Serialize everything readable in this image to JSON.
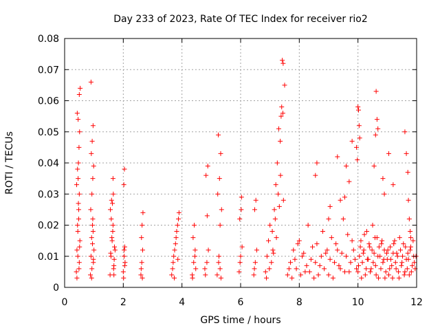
{
  "chart_data": {
    "type": "scatter",
    "title": "Day 233 of 2023, Rate Of TEC Index for receiver rio2",
    "xlabel": "GPS time / hours",
    "ylabel": "ROTI / TECUs",
    "xlim": [
      0,
      12
    ],
    "ylim": [
      0,
      0.08
    ],
    "xticks": [
      0,
      2,
      4,
      6,
      8,
      10,
      12
    ],
    "xtick_labels": [
      "0",
      "2",
      "4",
      "6",
      "8",
      "10",
      "12"
    ],
    "yticks": [
      0,
      0.01,
      0.02,
      0.03,
      0.04,
      0.05,
      0.06,
      0.07,
      0.08
    ],
    "ytick_labels": [
      "0",
      "0.01",
      "0.02",
      "0.03",
      "0.04",
      "0.05",
      "0.06",
      "0.07",
      "0.08"
    ],
    "grid": true,
    "marker": "+",
    "color": "#ff0000",
    "series": [
      {
        "name": "ROTI",
        "x": [
          0.4,
          0.42,
          0.45,
          0.48,
          0.5,
          0.52,
          0.41,
          0.44,
          0.47,
          0.49,
          0.51,
          0.43,
          0.46,
          0.5,
          0.53,
          0.42,
          0.45,
          0.48,
          0.5,
          0.44,
          0.47,
          0.49,
          0.51,
          0.46,
          0.88,
          0.9,
          0.92,
          0.95,
          0.98,
          1.0,
          0.89,
          0.93,
          0.96,
          0.99,
          0.91,
          0.94,
          0.97,
          0.9,
          0.93,
          0.95,
          0.97,
          0.92,
          0.96,
          0.98,
          1.55,
          1.58,
          1.62,
          1.65,
          1.68,
          1.72,
          1.56,
          1.6,
          1.64,
          1.67,
          1.7,
          1.59,
          1.63,
          1.66,
          1.69,
          1.61,
          1.65,
          1.68,
          1.57,
          2.0,
          2.03,
          2.05,
          2.02,
          2.04,
          2.06,
          2.01,
          2.03,
          2.05,
          2.6,
          2.63,
          2.66,
          2.62,
          2.64,
          2.67,
          2.61,
          2.65,
          3.65,
          3.7,
          3.75,
          3.8,
          3.85,
          3.9,
          3.68,
          3.72,
          3.78,
          3.82,
          3.88,
          3.74,
          3.86,
          4.35,
          4.4,
          4.45,
          4.38,
          4.42,
          4.47,
          4.36,
          4.44,
          4.8,
          4.85,
          4.9,
          4.82,
          4.88,
          4.78,
          4.86,
          5.2,
          5.25,
          5.3,
          5.35,
          5.22,
          5.28,
          5.32,
          5.24,
          5.3,
          5.33,
          5.26,
          5.95,
          6.0,
          6.05,
          5.97,
          6.02,
          6.03,
          5.98,
          6.45,
          6.5,
          6.55,
          6.48,
          6.52,
          6.47,
          6.85,
          6.9,
          6.95,
          7.0,
          7.05,
          7.1,
          7.15,
          7.2,
          7.25,
          7.3,
          7.35,
          7.4,
          7.45,
          7.5,
          6.88,
          6.98,
          7.08,
          7.18,
          7.28,
          7.38,
          7.42,
          7.44,
          7.46,
          7.36,
          7.32,
          7.22,
          7.12,
          7.6,
          7.7,
          7.8,
          7.9,
          8.0,
          8.1,
          8.2,
          8.3,
          8.4,
          8.5,
          8.6,
          8.7,
          8.8,
          8.9,
          9.0,
          9.1,
          9.2,
          9.3,
          9.4,
          9.5,
          9.6,
          9.7,
          9.8,
          9.9,
          7.65,
          7.75,
          7.85,
          7.95,
          8.05,
          8.15,
          8.25,
          8.35,
          8.45,
          8.55,
          8.65,
          8.75,
          8.85,
          8.95,
          9.05,
          9.15,
          9.25,
          9.35,
          9.45,
          9.55,
          9.65,
          9.75,
          9.85,
          9.95,
          8.55,
          8.6,
          9.0,
          9.05,
          9.3,
          9.4,
          9.55,
          9.6,
          9.7,
          9.8,
          10.0,
          10.05,
          10.1,
          10.15,
          10.2,
          10.25,
          10.3,
          10.35,
          10.4,
          10.45,
          10.5,
          10.55,
          10.6,
          10.65,
          10.7,
          10.75,
          10.8,
          10.85,
          10.9,
          10.95,
          11.0,
          11.05,
          11.1,
          11.15,
          11.2,
          11.25,
          11.3,
          11.35,
          11.4,
          11.45,
          11.5,
          11.55,
          11.6,
          11.65,
          11.7,
          11.75,
          11.8,
          11.85,
          11.9,
          11.95,
          10.02,
          10.08,
          10.12,
          10.18,
          10.22,
          10.28,
          10.32,
          10.38,
          10.42,
          10.48,
          10.52,
          10.58,
          10.62,
          10.68,
          10.72,
          10.78,
          10.82,
          10.88,
          10.92,
          10.98,
          11.02,
          11.08,
          11.12,
          11.18,
          11.22,
          11.28,
          11.32,
          11.38,
          11.42,
          11.48,
          11.52,
          11.58,
          11.62,
          11.68,
          11.72,
          11.78,
          11.82,
          11.88,
          11.92,
          11.98,
          9.95,
          9.98,
          10.0,
          10.02,
          10.04,
          10.06,
          10.55,
          10.6,
          10.62,
          10.65,
          10.68,
          10.85,
          10.9,
          11.05,
          11.2,
          11.6,
          11.65,
          11.7,
          11.72,
          11.75,
          11.78,
          11.8
        ],
        "y": [
          0.005,
          0.012,
          0.018,
          0.022,
          0.008,
          0.015,
          0.033,
          0.038,
          0.04,
          0.045,
          0.05,
          0.056,
          0.054,
          0.062,
          0.064,
          0.003,
          0.01,
          0.025,
          0.03,
          0.02,
          0.027,
          0.006,
          0.013,
          0.035,
          0.004,
          0.01,
          0.016,
          0.02,
          0.008,
          0.012,
          0.025,
          0.03,
          0.035,
          0.039,
          0.043,
          0.047,
          0.052,
          0.066,
          0.006,
          0.014,
          0.018,
          0.003,
          0.022,
          0.009,
          0.004,
          0.01,
          0.015,
          0.02,
          0.007,
          0.012,
          0.025,
          0.028,
          0.018,
          0.006,
          0.013,
          0.022,
          0.027,
          0.03,
          0.009,
          0.016,
          0.035,
          0.004,
          0.011,
          0.005,
          0.01,
          0.013,
          0.033,
          0.038,
          0.008,
          0.003,
          0.012,
          0.007,
          0.004,
          0.008,
          0.012,
          0.016,
          0.02,
          0.024,
          0.006,
          0.003,
          0.004,
          0.008,
          0.012,
          0.016,
          0.02,
          0.024,
          0.006,
          0.01,
          0.014,
          0.018,
          0.022,
          0.003,
          0.009,
          0.004,
          0.008,
          0.012,
          0.016,
          0.02,
          0.006,
          0.003,
          0.01,
          0.004,
          0.008,
          0.012,
          0.036,
          0.039,
          0.006,
          0.023,
          0.004,
          0.008,
          0.02,
          0.025,
          0.03,
          0.035,
          0.043,
          0.049,
          0.006,
          0.003,
          0.01,
          0.005,
          0.01,
          0.013,
          0.022,
          0.025,
          0.029,
          0.008,
          0.004,
          0.008,
          0.012,
          0.025,
          0.028,
          0.006,
          0.005,
          0.01,
          0.015,
          0.02,
          0.008,
          0.012,
          0.025,
          0.033,
          0.04,
          0.051,
          0.047,
          0.058,
          0.072,
          0.065,
          0.003,
          0.006,
          0.018,
          0.022,
          0.03,
          0.055,
          0.073,
          0.056,
          0.028,
          0.036,
          0.026,
          0.016,
          0.011,
          0.004,
          0.008,
          0.012,
          0.006,
          0.015,
          0.01,
          0.005,
          0.02,
          0.009,
          0.003,
          0.014,
          0.007,
          0.018,
          0.011,
          0.004,
          0.016,
          0.008,
          0.012,
          0.006,
          0.022,
          0.01,
          0.005,
          0.015,
          0.009,
          0.006,
          0.003,
          0.009,
          0.014,
          0.004,
          0.011,
          0.007,
          0.005,
          0.013,
          0.008,
          0.004,
          0.01,
          0.006,
          0.012,
          0.009,
          0.003,
          0.014,
          0.007,
          0.011,
          0.005,
          0.017,
          0.008,
          0.012,
          0.006,
          0.036,
          0.04,
          0.022,
          0.026,
          0.042,
          0.028,
          0.029,
          0.039,
          0.034,
          0.047,
          0.005,
          0.01,
          0.015,
          0.008,
          0.012,
          0.004,
          0.018,
          0.009,
          0.013,
          0.006,
          0.02,
          0.011,
          0.007,
          0.016,
          0.003,
          0.01,
          0.014,
          0.008,
          0.012,
          0.005,
          0.009,
          0.004,
          0.013,
          0.007,
          0.011,
          0.015,
          0.006,
          0.01,
          0.003,
          0.012,
          0.008,
          0.014,
          0.005,
          0.009,
          0.011,
          0.004,
          0.013,
          0.007,
          0.01,
          0.006,
          0.007,
          0.013,
          0.003,
          0.011,
          0.017,
          0.006,
          0.009,
          0.014,
          0.005,
          0.012,
          0.008,
          0.016,
          0.004,
          0.01,
          0.013,
          0.006,
          0.015,
          0.009,
          0.003,
          0.011,
          0.012,
          0.006,
          0.009,
          0.003,
          0.014,
          0.008,
          0.011,
          0.005,
          0.016,
          0.007,
          0.01,
          0.004,
          0.013,
          0.006,
          0.009,
          0.012,
          0.005,
          0.015,
          0.008,
          0.01,
          0.045,
          0.041,
          0.058,
          0.057,
          0.052,
          0.048,
          0.039,
          0.049,
          0.063,
          0.054,
          0.051,
          0.035,
          0.03,
          0.043,
          0.033,
          0.05,
          0.043,
          0.037,
          0.028,
          0.022,
          0.018,
          0.016
        ]
      }
    ]
  }
}
